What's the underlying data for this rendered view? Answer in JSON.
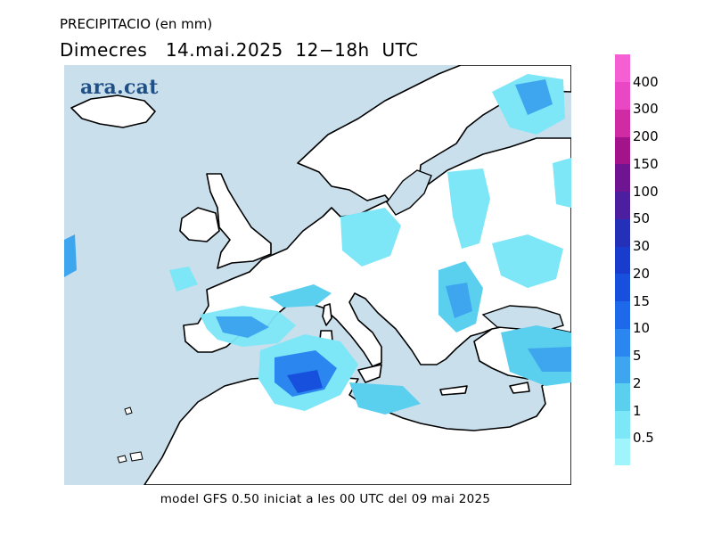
{
  "header": {
    "variable": "PRECIPITACIO (en mm)",
    "period": "Dimecres   14.mai.2025  12−18h  UTC"
  },
  "logo_text": "ara.cat",
  "footer": "model  GFS  0.50  iniciat  a  les  00  UTC  del  09  mai  2025",
  "map": {
    "region": "Europe",
    "sea_color": "#c9dfec",
    "land_color": "#ffffff",
    "coast_color": "#000000"
  },
  "legend": {
    "thresholds": [
      "0.5",
      "1",
      "2",
      "5",
      "10",
      "15",
      "20",
      "30",
      "50",
      "100",
      "150",
      "200",
      "300",
      "400"
    ],
    "colors": [
      "#a0f4fb",
      "#7de6f7",
      "#5acfee",
      "#3ea6ee",
      "#2b87ef",
      "#1e69ea",
      "#1650dc",
      "#1a3ccc",
      "#2430b8",
      "#4b1fa0",
      "#6f1592",
      "#a3138c",
      "#cf2ba5",
      "#ea47c4",
      "#f55fd3"
    ]
  }
}
